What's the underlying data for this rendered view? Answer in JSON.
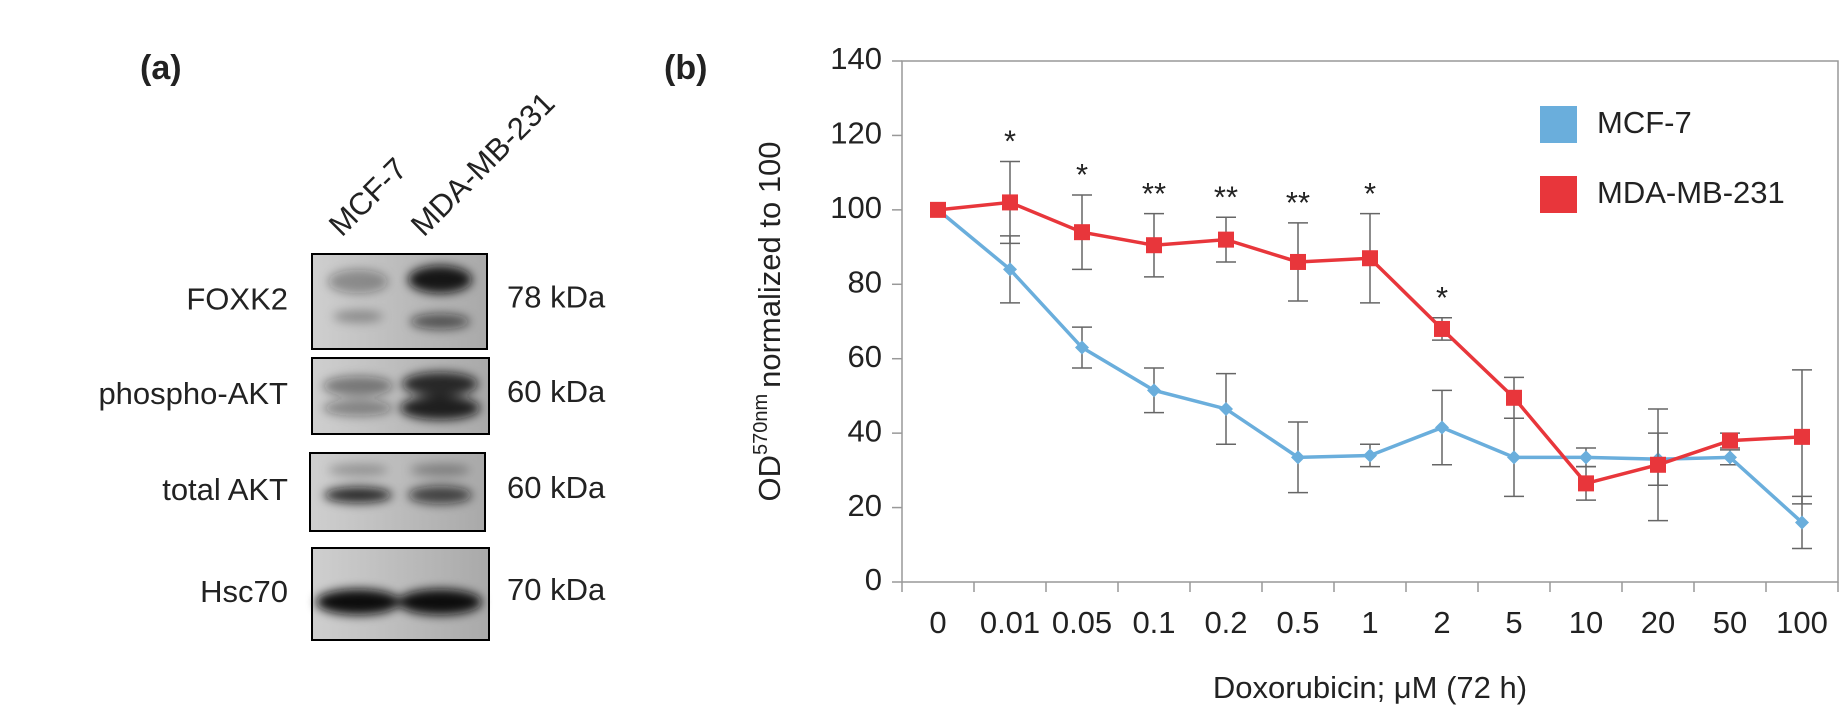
{
  "panel_a": {
    "label": "(a)",
    "lanes": [
      "MCF-7",
      "MDA-MB-231"
    ],
    "rows": [
      {
        "protein": "FOXK2",
        "size": "78 kDa"
      },
      {
        "protein": "phospho-AKT",
        "size": "60 kDa"
      },
      {
        "protein": "total AKT",
        "size": "60 kDa"
      },
      {
        "protein": "Hsc70",
        "size": "70 kDa"
      }
    ]
  },
  "chart_data": {
    "type": "line",
    "panel_label": "(b)",
    "xlabel": "Doxorubicin; μM (72 h)",
    "ylabel": [
      "OD",
      "570nm",
      "normalized to 100"
    ],
    "categories": [
      "0",
      "0.01",
      "0.05",
      "0.1",
      "0.2",
      "0.5",
      "1",
      "2",
      "5",
      "10",
      "20",
      "50",
      "100"
    ],
    "annotations": [
      null,
      "*",
      "*",
      "**",
      "**",
      "**",
      "*",
      "*",
      null,
      null,
      null,
      null,
      null
    ],
    "series": [
      {
        "name": "MCF-7",
        "color": "#6aaedc",
        "marker": "diamond",
        "values": [
          100,
          84,
          63,
          51.5,
          46.5,
          33.5,
          34,
          41.5,
          33.5,
          33.5,
          33,
          33.5,
          16
        ],
        "errors": [
          0,
          9,
          5.5,
          6,
          9.5,
          9.5,
          3,
          10,
          10.5,
          2.5,
          7,
          2,
          7
        ]
      },
      {
        "name": "MDA-MB-231",
        "color": "#e8363b",
        "marker": "square",
        "values": [
          100,
          102,
          94,
          90.5,
          92,
          86,
          87,
          68,
          49.5,
          26.5,
          31.5,
          38,
          39
        ],
        "errors": [
          0,
          11,
          10,
          8.5,
          6,
          10.5,
          12,
          3,
          5.5,
          4.5,
          15,
          2,
          18
        ]
      }
    ],
    "ylim": [
      0,
      140
    ],
    "yticks": [
      0,
      20,
      40,
      60,
      80,
      100,
      120,
      140
    ],
    "legend": "top-right",
    "grid": false
  }
}
